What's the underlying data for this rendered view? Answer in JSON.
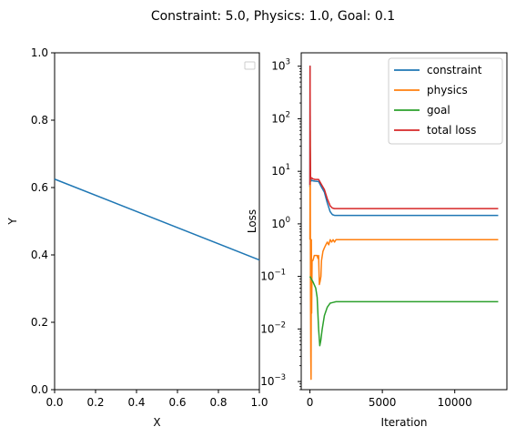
{
  "figure": {
    "suptitle": "Constraint: 5.0, Physics: 1.0, Goal: 0.1"
  },
  "chart_data": [
    {
      "type": "line",
      "xlabel": "X",
      "ylabel": "Y",
      "xlim": [
        0,
        1
      ],
      "ylim": [
        0,
        1
      ],
      "x_ticks": [
        "0.0",
        "0.2",
        "0.4",
        "0.6",
        "0.8",
        "1.0"
      ],
      "y_ticks": [
        "0.0",
        "0.2",
        "0.4",
        "0.6",
        "0.8",
        "1.0"
      ],
      "legend": {
        "placement": "upper-right",
        "entries": []
      },
      "series": [
        {
          "color": "#1f77b4",
          "x": [
            0.0,
            1.0
          ],
          "y": [
            0.625,
            0.385
          ]
        }
      ]
    },
    {
      "type": "line",
      "xlabel": "Iteration",
      "ylabel": "Loss",
      "y_scale": "log",
      "xlim": [
        -600,
        13600
      ],
      "ylim": [
        0.0007,
        1800
      ],
      "x_ticks": [
        "0",
        "5000",
        "10000"
      ],
      "y_ticks": [
        "10^-3",
        "10^-2",
        "10^-1",
        "10^0",
        "10^1",
        "10^2",
        "10^3"
      ],
      "legend": {
        "placement": "upper-right"
      },
      "series": [
        {
          "name": "constraint",
          "color": "#1f77b4",
          "x": [
            0,
            10,
            20,
            40,
            80,
            120,
            200,
            350,
            600,
            800,
            1000,
            1200,
            1400,
            1550,
            1700,
            1850,
            2000,
            3000,
            6000,
            10000,
            13000
          ],
          "y": [
            5.0,
            1000,
            30,
            7.0,
            6.5,
            6.8,
            6.6,
            6.5,
            6.4,
            5.0,
            4.0,
            2.5,
            1.7,
            1.5,
            1.45,
            1.45,
            1.45,
            1.45,
            1.45,
            1.45,
            1.45
          ]
        },
        {
          "name": "physics",
          "color": "#ff7f0e",
          "x": [
            0,
            20,
            40,
            60,
            80,
            100,
            120,
            150,
            200,
            250,
            300,
            400,
            500,
            550,
            600,
            650,
            700,
            760,
            800,
            900,
            1000,
            1100,
            1200,
            1300,
            1400,
            1500,
            1600,
            1700,
            1800,
            2000,
            3000,
            6000,
            10000,
            13000
          ],
          "y": [
            0.5,
            60,
            0.05,
            0.003,
            0.0011,
            0.5,
            0.02,
            0.2,
            0.2,
            0.22,
            0.25,
            0.25,
            0.25,
            0.22,
            0.25,
            0.07,
            0.08,
            0.1,
            0.2,
            0.3,
            0.35,
            0.4,
            0.45,
            0.4,
            0.5,
            0.45,
            0.5,
            0.45,
            0.5,
            0.5,
            0.5,
            0.5,
            0.5,
            0.5
          ]
        },
        {
          "name": "goal",
          "color": "#2ca02c",
          "x": [
            0,
            200,
            400,
            500,
            600,
            680,
            750,
            850,
            1000,
            1200,
            1400,
            1600,
            1800,
            2000,
            3000,
            6000,
            10000,
            13000
          ],
          "y": [
            0.1,
            0.08,
            0.06,
            0.04,
            0.01,
            0.0048,
            0.006,
            0.01,
            0.018,
            0.026,
            0.031,
            0.032,
            0.033,
            0.033,
            0.033,
            0.033,
            0.033,
            0.033
          ],
          "note": ""
        },
        {
          "name": "total loss",
          "color": "#d62728",
          "x": [
            0,
            10,
            20,
            40,
            80,
            120,
            200,
            350,
            600,
            800,
            1000,
            1200,
            1400,
            1550,
            1700,
            1850,
            2000,
            3000,
            6000,
            10000,
            13000
          ],
          "y": [
            5.5,
            1000,
            30,
            8.0,
            7.2,
            7.5,
            7.2,
            7.0,
            7.0,
            5.6,
            4.5,
            3.0,
            2.2,
            2.0,
            1.95,
            1.95,
            1.95,
            1.95,
            1.95,
            1.95,
            1.95
          ]
        }
      ]
    }
  ]
}
